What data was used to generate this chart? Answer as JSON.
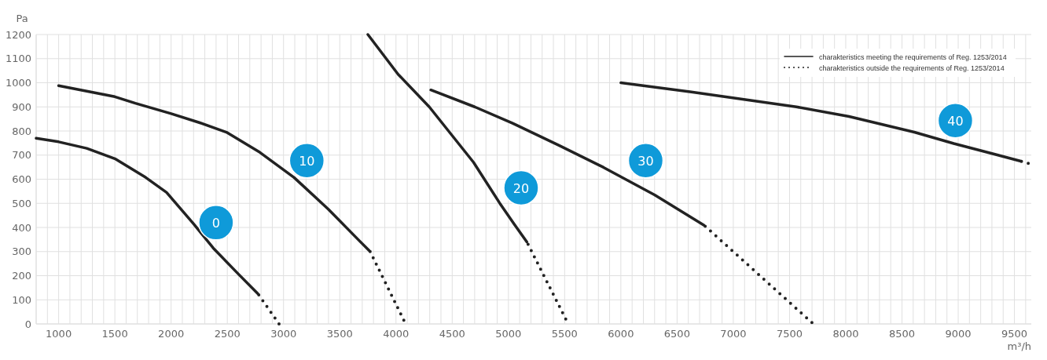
{
  "chart_data": {
    "type": "line",
    "xlabel": "m³/h",
    "ylabel": "Pa",
    "xlim": [
      800,
      9650
    ],
    "ylim": [
      0,
      1200
    ],
    "xticks": [
      {
        "value": 800,
        "label": null
      },
      {
        "value": 900,
        "label": null
      },
      1000,
      {
        "value": 1100,
        "label": null
      },
      {
        "value": 1200,
        "label": null
      },
      {
        "value": 1300,
        "label": null
      },
      {
        "value": 1400,
        "label": null
      },
      1500,
      {
        "value": 1600,
        "label": null
      },
      {
        "value": 1700,
        "label": null
      },
      {
        "value": 1800,
        "label": null
      },
      {
        "value": 1900,
        "label": null
      },
      2000,
      {
        "value": 2100,
        "label": null
      },
      {
        "value": 2200,
        "label": null
      },
      {
        "value": 2300,
        "label": null
      },
      {
        "value": 2400,
        "label": null
      },
      2500,
      {
        "value": 2600,
        "label": null
      },
      {
        "value": 2700,
        "label": null
      },
      {
        "value": 2800,
        "label": null
      },
      {
        "value": 2900,
        "label": null
      },
      3000,
      {
        "value": 3100,
        "label": null
      },
      {
        "value": 3200,
        "label": null
      },
      {
        "value": 3300,
        "label": null
      },
      {
        "value": 3400,
        "label": null
      },
      3500,
      {
        "value": 3600,
        "label": null
      },
      {
        "value": 3700,
        "label": null
      },
      {
        "value": 3800,
        "label": null
      },
      {
        "value": 3900,
        "label": null
      },
      4000,
      {
        "value": 4100,
        "label": null
      },
      {
        "value": 4200,
        "label": null
      },
      {
        "value": 4300,
        "label": null
      },
      {
        "value": 4400,
        "label": null
      },
      4500,
      {
        "value": 4600,
        "label": null
      },
      {
        "value": 4700,
        "label": null
      },
      {
        "value": 4800,
        "label": null
      },
      {
        "value": 4900,
        "label": null
      },
      5000,
      {
        "value": 5100,
        "label": null
      },
      {
        "value": 5200,
        "label": null
      },
      {
        "value": 5300,
        "label": null
      },
      {
        "value": 5400,
        "label": null
      },
      5500,
      {
        "value": 5600,
        "label": null
      },
      {
        "value": 5700,
        "label": null
      },
      {
        "value": 5800,
        "label": null
      },
      {
        "value": 5900,
        "label": null
      },
      6000,
      {
        "value": 6100,
        "label": null
      },
      {
        "value": 6200,
        "label": null
      },
      {
        "value": 6300,
        "label": null
      },
      {
        "value": 6400,
        "label": null
      },
      6500,
      {
        "value": 6600,
        "label": null
      },
      {
        "value": 6700,
        "label": null
      },
      {
        "value": 6800,
        "label": null
      },
      {
        "value": 6900,
        "label": null
      },
      7000,
      {
        "value": 7100,
        "label": null
      },
      {
        "value": 7200,
        "label": null
      },
      {
        "value": 7300,
        "label": null
      },
      {
        "value": 7400,
        "label": null
      },
      7500,
      {
        "value": 7600,
        "label": null
      },
      {
        "value": 7700,
        "label": null
      },
      {
        "value": 7800,
        "label": null
      },
      {
        "value": 7900,
        "label": null
      },
      8000,
      {
        "value": 8100,
        "label": null
      },
      {
        "value": 8200,
        "label": null
      },
      {
        "value": 8300,
        "label": null
      },
      {
        "value": 8400,
        "label": null
      },
      8500,
      {
        "value": 8600,
        "label": null
      },
      {
        "value": 8700,
        "label": null
      },
      {
        "value": 8800,
        "label": null
      },
      {
        "value": 8900,
        "label": null
      },
      9000,
      {
        "value": 9100,
        "label": null
      },
      {
        "value": 9200,
        "label": null
      },
      {
        "value": 9300,
        "label": null
      },
      {
        "value": 9400,
        "label": null
      },
      9500,
      {
        "value": 9600,
        "label": null
      }
    ],
    "yticks": [
      0,
      100,
      200,
      300,
      400,
      500,
      600,
      700,
      800,
      900,
      1000,
      1100,
      1200
    ],
    "grid": true,
    "legend": "top right",
    "marker": "none",
    "series": [
      {
        "name": "charakteristics meeting the requirements of Reg. 1253/2014",
        "color": "#222222",
        "line_style": "solid",
        "x": [
          800,
          1000,
          1250,
          1500,
          1775,
          1960,
          2200,
          2376,
          2600,
          2770
        ],
        "values": [
          770,
          755,
          728,
          685,
          607,
          545,
          415,
          314,
          206,
          126
        ]
      },
      {
        "name": "charakteristics outside the requirements of Reg. 1253/2014",
        "color": "#222222",
        "line_style": "dotted",
        "x": [
          2780,
          2960
        ],
        "values": [
          120,
          0
        ]
      },
      {
        "color": "#222222",
        "line_style": "solid",
        "x": [
          1000,
          1250,
          1500,
          1682,
          2000,
          2250,
          2492,
          2790,
          3094,
          3400,
          3672,
          3760
        ],
        "values": [
          988,
          965,
          942,
          915,
          872,
          835,
          795,
          711,
          607,
          475,
          346,
          305
        ]
      },
      {
        "color": "#222222",
        "line_style": "dotted",
        "x": [
          3770,
          4070
        ],
        "values": [
          300,
          15
        ]
      },
      {
        "color": "#222222",
        "line_style": "solid",
        "x": [
          3750,
          4019,
          4296,
          4690,
          4921,
          5050,
          5164
        ],
        "values": [
          1200,
          1035,
          900,
          670,
          502,
          415,
          340
        ]
      },
      {
        "color": "#222222",
        "line_style": "dotted",
        "x": [
          5175,
          5510
        ],
        "values": [
          330,
          20
        ]
      },
      {
        "color": "#222222",
        "line_style": "solid",
        "x": [
          4310,
          4700,
          5037,
          5450,
          5846,
          6300,
          6737
        ],
        "values": [
          970,
          900,
          832,
          740,
          649,
          535,
          410
        ]
      },
      {
        "color": "#222222",
        "line_style": "dotted",
        "x": [
          6750,
          7700
        ],
        "values": [
          405,
          5
        ]
      },
      {
        "color": "#222222",
        "line_style": "solid",
        "x": [
          6000,
          6627,
          7561,
          8029,
          8610,
          8961,
          9557
        ],
        "values": [
          1000,
          962,
          900,
          860,
          795,
          748,
          675
        ]
      },
      {
        "color": "#222222",
        "line_style": "dotted",
        "x": [
          9563,
          9623
        ],
        "values": [
          674,
          666
        ]
      }
    ],
    "annotations": [
      {
        "text": "0",
        "x": 2400,
        "y": 420
      },
      {
        "text": "10",
        "x": 3207,
        "y": 677
      },
      {
        "text": "20",
        "x": 5113,
        "y": 564
      },
      {
        "text": "30",
        "x": 6221,
        "y": 677
      },
      {
        "text": "40",
        "x": 8975,
        "y": 843
      }
    ]
  }
}
